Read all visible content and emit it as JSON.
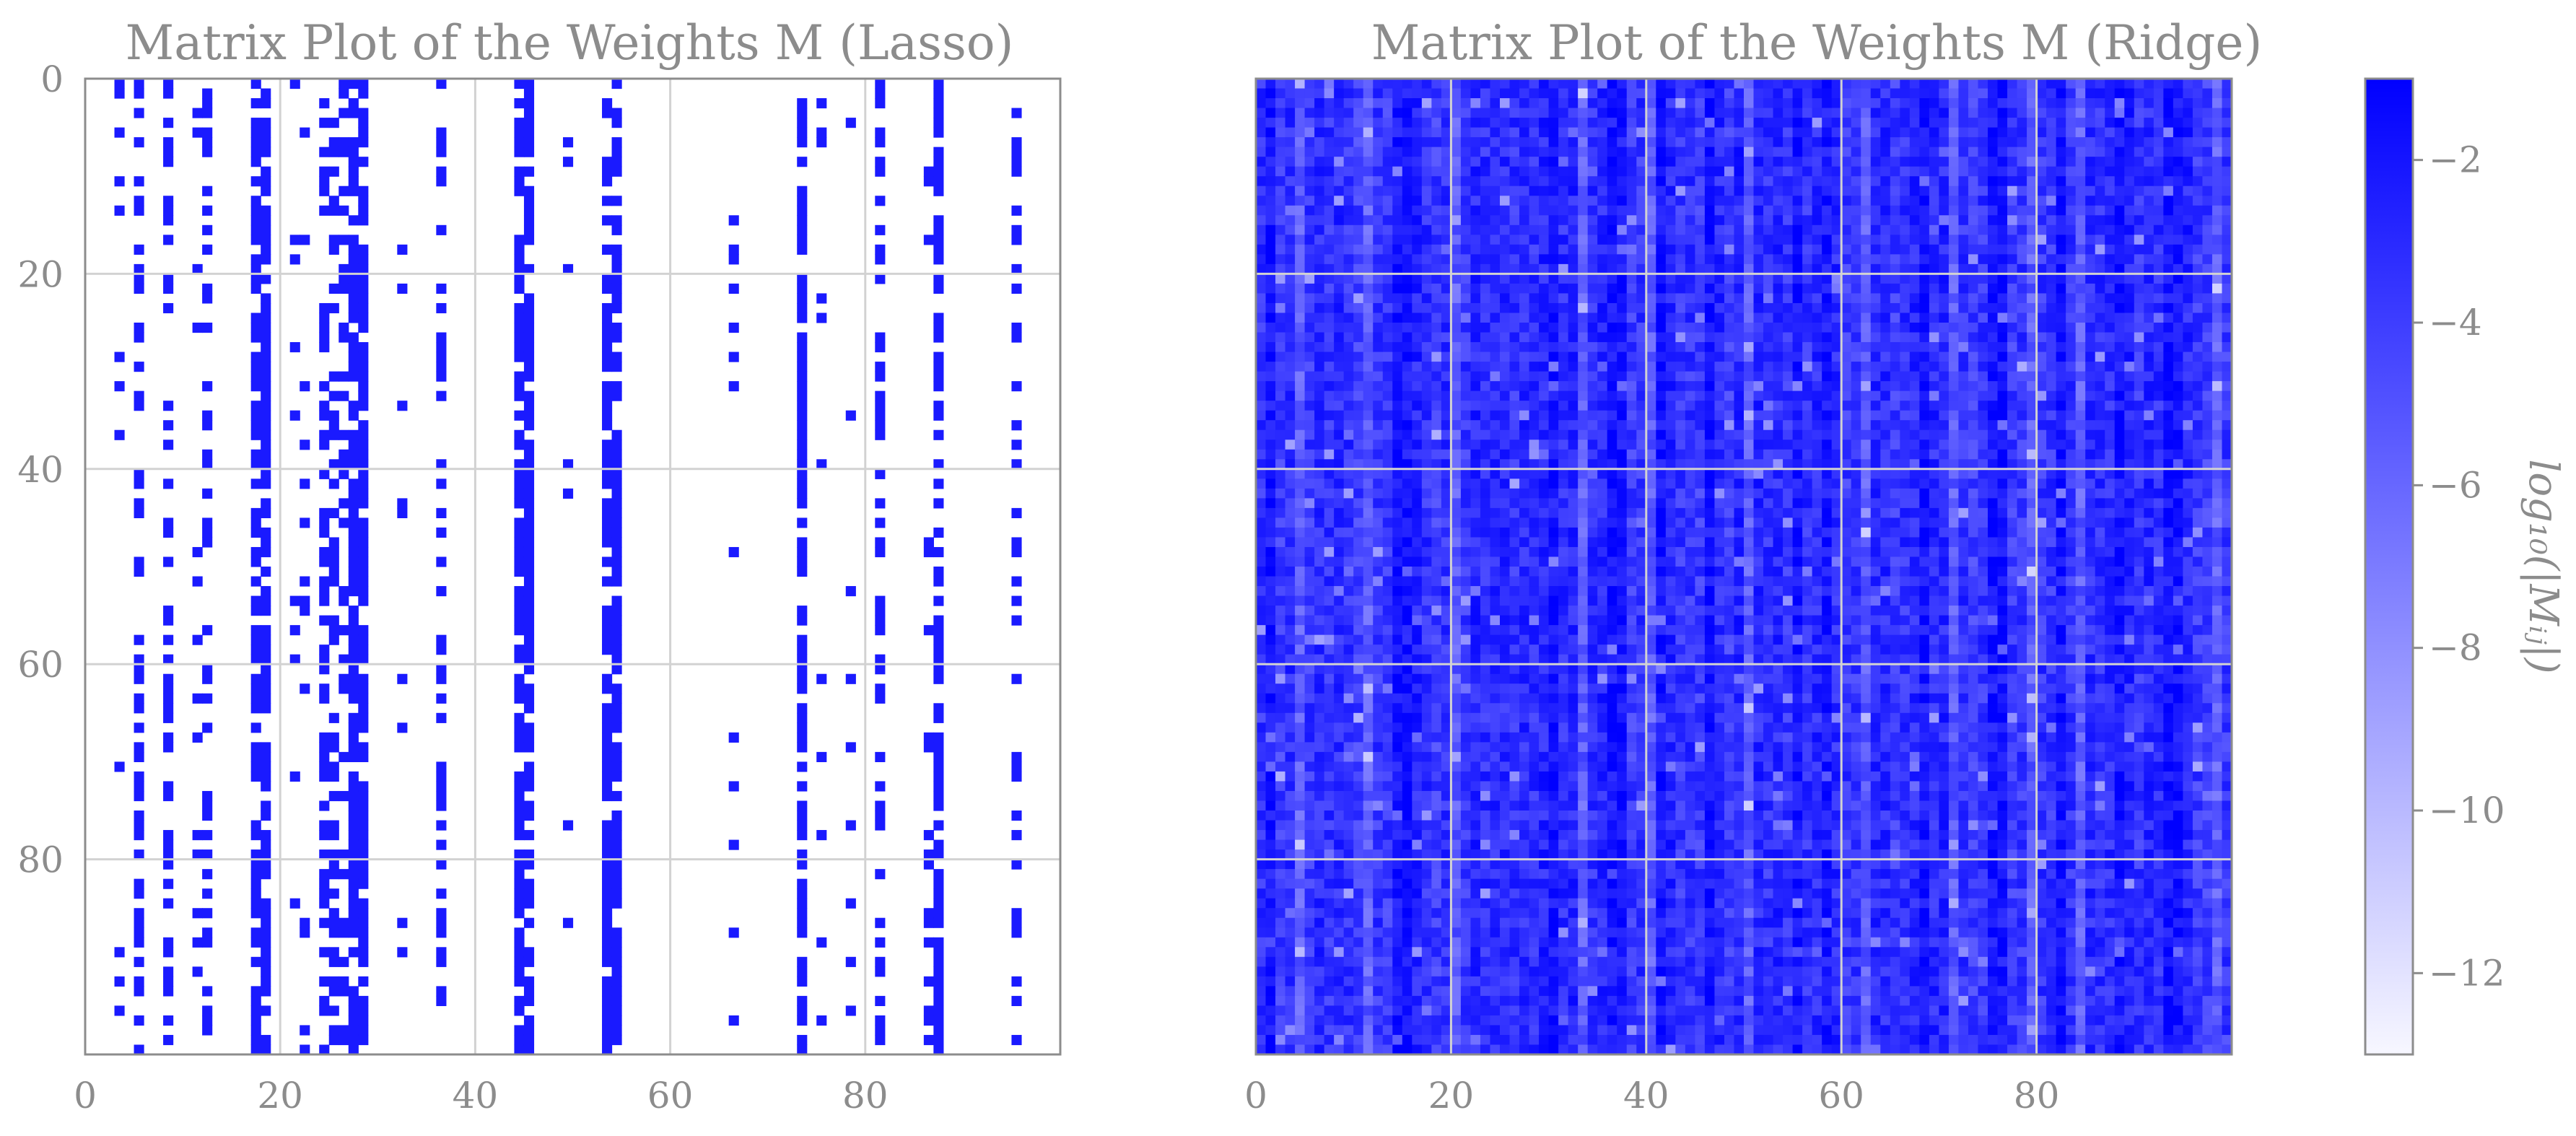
{
  "chart_data": [
    {
      "type": "heatmap",
      "title": "Matrix Plot of the Weights M (Lasso)",
      "xlabel": "",
      "ylabel": "",
      "shape": [
        100,
        100
      ],
      "xlim": [
        0,
        99
      ],
      "ylim": [
        99,
        0
      ],
      "xticks": [
        0,
        20,
        40,
        60,
        80
      ],
      "yticks": [
        0,
        20,
        40,
        60,
        80
      ],
      "grid": true,
      "cmap": "white-to-blue",
      "dense_columns": [
        17,
        18,
        27,
        28,
        44,
        45,
        53,
        54,
        73,
        87
      ],
      "medium_columns": [
        5,
        8,
        12,
        24,
        25,
        26,
        36,
        81,
        95
      ],
      "sparse_columns": [
        3,
        11,
        21,
        22,
        32,
        49,
        66,
        75,
        78,
        86
      ],
      "description": "sparse binary pattern"
    },
    {
      "type": "heatmap",
      "title": "Matrix Plot of the Weights M (Ridge)",
      "xlabel": "",
      "ylabel": "",
      "shape": [
        100,
        100
      ],
      "xlim": [
        0,
        99
      ],
      "ylim": [
        99,
        0
      ],
      "xticks": [
        0,
        20,
        40,
        60,
        80
      ],
      "yticks": [],
      "grid": true,
      "cmap": "white-to-blue",
      "value_range": [
        -13,
        -1
      ],
      "strong_columns": [
        1,
        14,
        15,
        30,
        36,
        37,
        41,
        46,
        55,
        58,
        68,
        75,
        76,
        82,
        88,
        93,
        94
      ],
      "weak_columns": [
        4,
        11,
        20,
        33,
        40,
        50,
        62,
        71,
        79,
        84,
        98
      ]
    }
  ],
  "colorbar": {
    "label": "log₁₀(|Mᵢⱼ|)",
    "min": -13,
    "max": -1,
    "ticks": [
      "−2",
      "−4",
      "−6",
      "−8",
      "−10",
      "−12"
    ],
    "tick_values": [
      -2,
      -4,
      -6,
      -8,
      -10,
      -12
    ]
  },
  "colors": {
    "high": "#0000ff",
    "low": "#f7f7ff",
    "lasso_on": "#1a1aff",
    "grid": "#d2d2d2",
    "frame": "#8c8c8c",
    "text": "#8c8c8c"
  },
  "tick_labels": {
    "x": [
      "0",
      "20",
      "40",
      "60",
      "80"
    ],
    "y": [
      "0",
      "20",
      "40",
      "60",
      "80"
    ]
  }
}
